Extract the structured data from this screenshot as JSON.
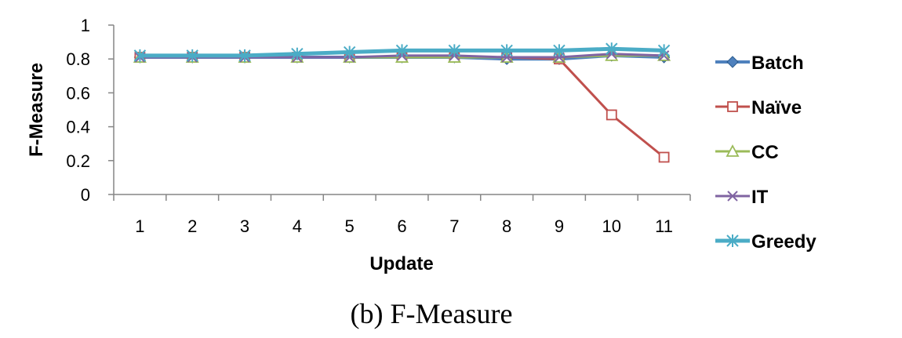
{
  "caption": "(b) F-Measure",
  "chart_data": {
    "type": "line",
    "xlabel": "Update",
    "ylabel": "F-Measure",
    "categories": [
      "1",
      "2",
      "3",
      "4",
      "5",
      "6",
      "7",
      "8",
      "9",
      "10",
      "11"
    ],
    "yticks": [
      "0",
      "0.2",
      "0.4",
      "0.6",
      "0.8",
      "1"
    ],
    "ylim": [
      0,
      1
    ],
    "grid": false,
    "legend_position": "right",
    "series": [
      {
        "name": "Batch",
        "color": "#4f81bd",
        "marker": "diamond",
        "values": [
          0.81,
          0.81,
          0.81,
          0.81,
          0.81,
          0.81,
          0.81,
          0.8,
          0.8,
          0.82,
          0.81
        ]
      },
      {
        "name": "Naïve",
        "color": "#c0504d",
        "marker": "square",
        "values": [
          0.81,
          0.81,
          0.81,
          0.81,
          0.81,
          0.81,
          0.81,
          0.81,
          0.8,
          0.47,
          0.22
        ]
      },
      {
        "name": "CC",
        "color": "#9bbb59",
        "marker": "triangle",
        "values": [
          0.81,
          0.81,
          0.81,
          0.81,
          0.81,
          0.81,
          0.81,
          0.81,
          0.81,
          0.82,
          0.82
        ]
      },
      {
        "name": "IT",
        "color": "#8064a2",
        "marker": "x",
        "values": [
          0.81,
          0.81,
          0.81,
          0.81,
          0.81,
          0.82,
          0.82,
          0.81,
          0.81,
          0.83,
          0.82
        ]
      },
      {
        "name": "Greedy",
        "color": "#4bacc6",
        "marker": "asterisk",
        "values": [
          0.82,
          0.82,
          0.82,
          0.83,
          0.84,
          0.85,
          0.85,
          0.85,
          0.85,
          0.86,
          0.85
        ]
      }
    ]
  }
}
